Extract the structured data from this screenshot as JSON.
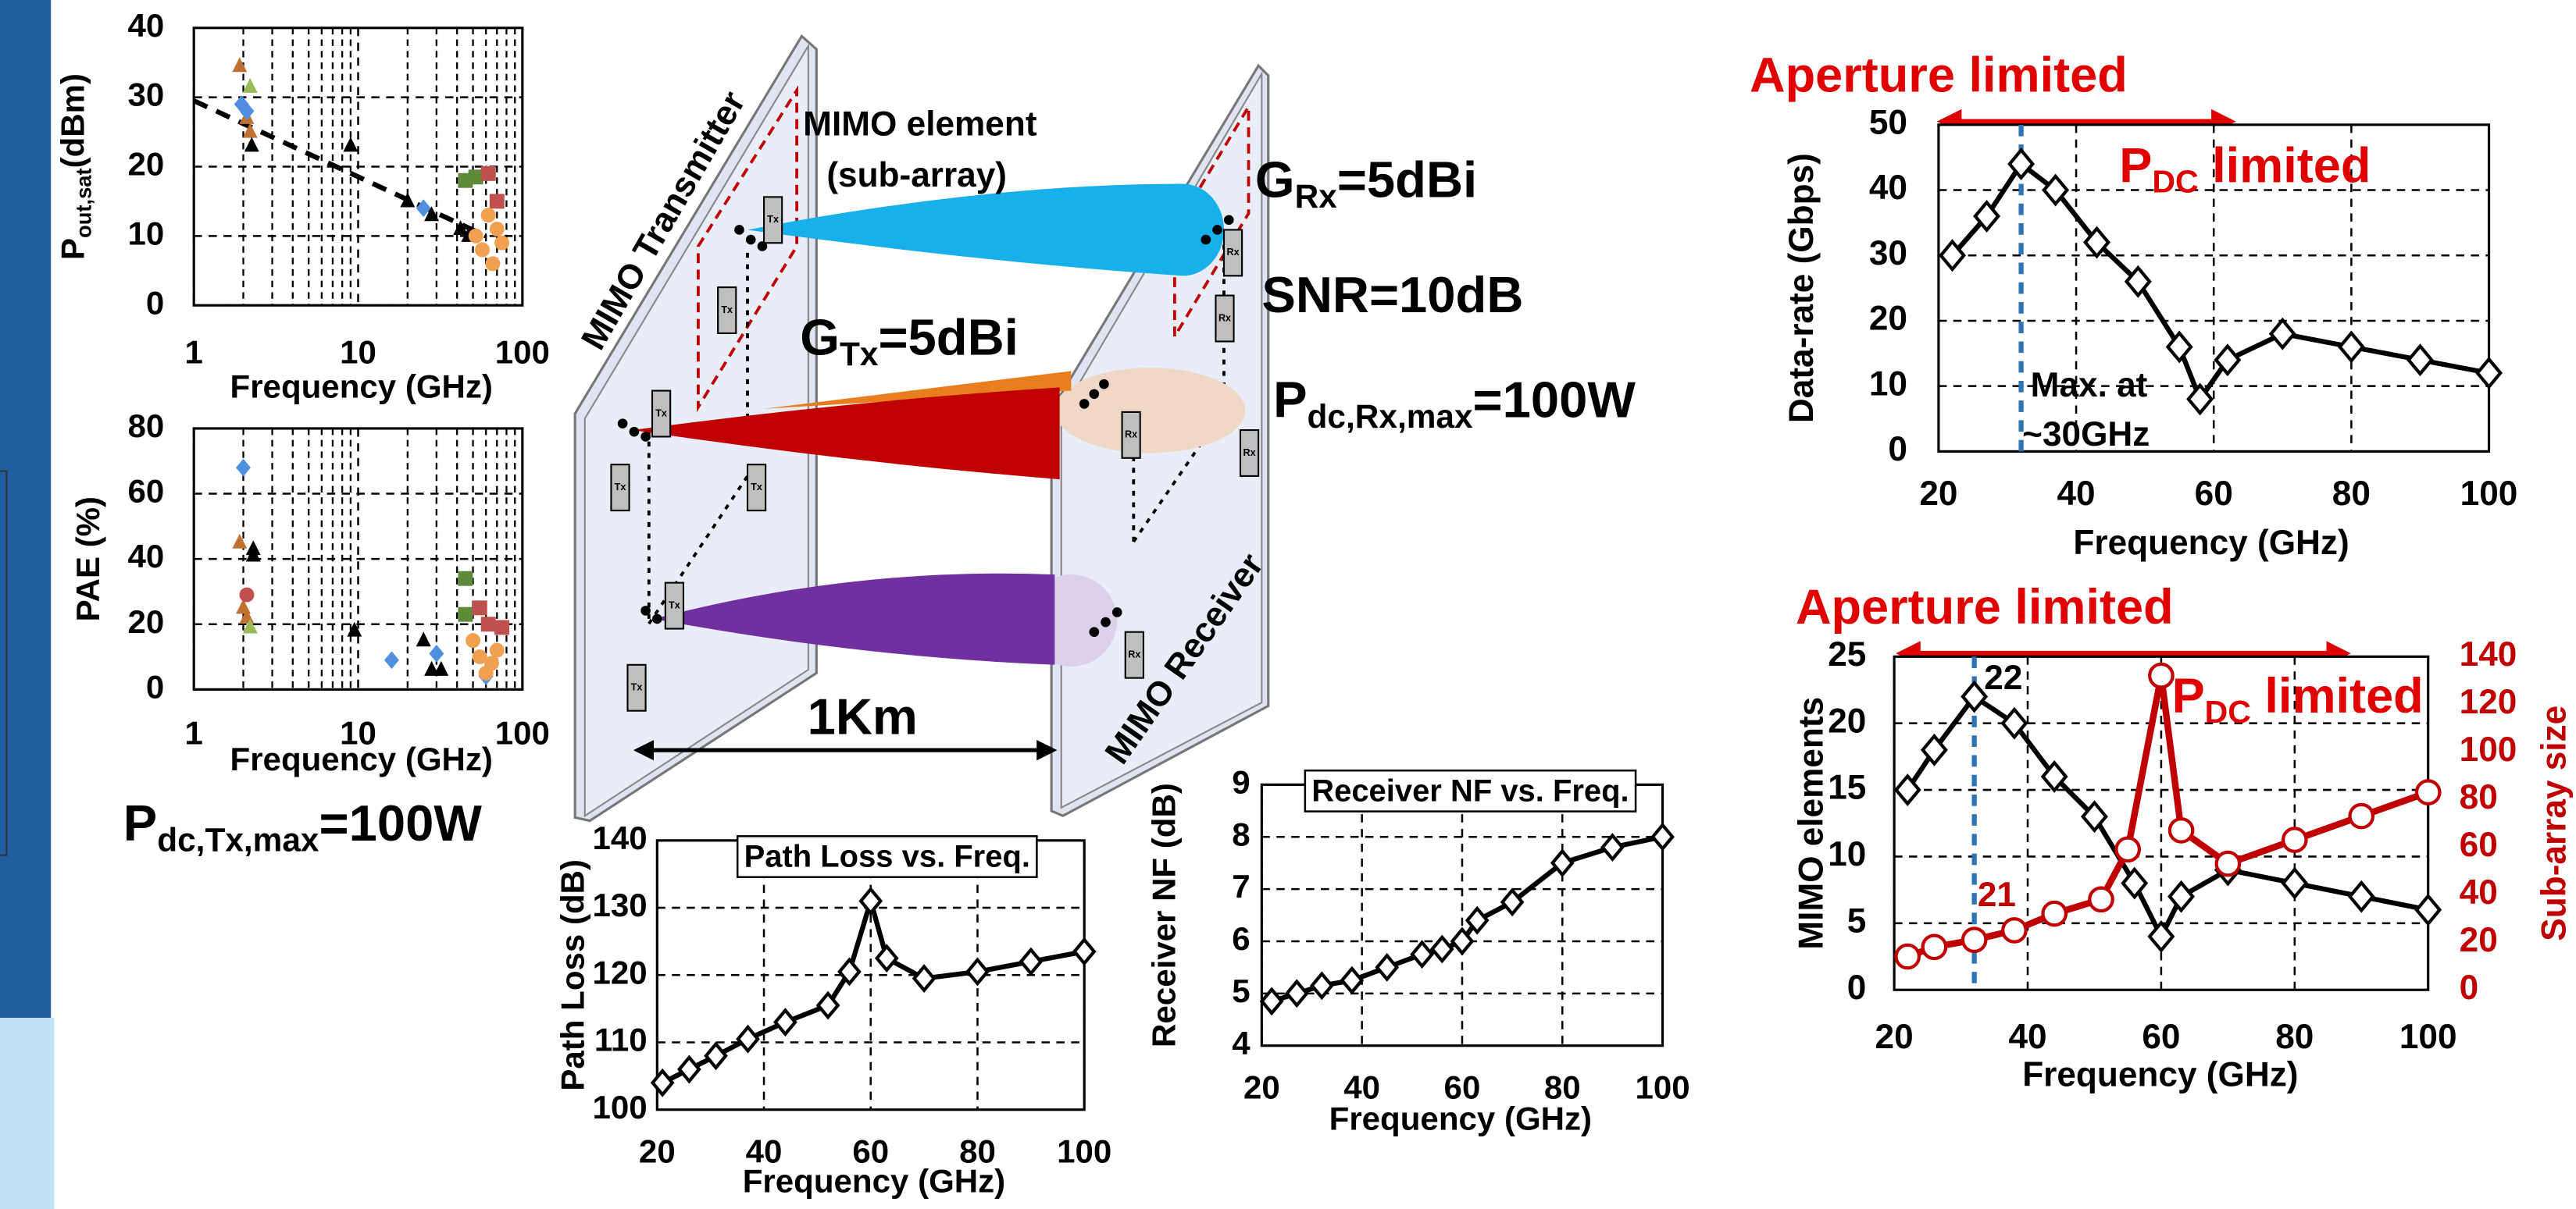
{
  "chart_data": [
    {
      "type": "scatter",
      "xscale": "log",
      "xlim": [
        1,
        100
      ],
      "xticks": [
        1,
        10,
        100
      ],
      "xminorticks": [
        2,
        3,
        4,
        5,
        6,
        7,
        8,
        9,
        20,
        30,
        40,
        50,
        60,
        70,
        80,
        90
      ],
      "ylim": [
        0,
        40
      ],
      "yticks": [
        0,
        10,
        20,
        30,
        40
      ],
      "grid": true,
      "x_label": "Frequency (GHz)",
      "y_label": [
        "P",
        "out,sat",
        "(dBm)"
      ],
      "trend": {
        "x": [
          1,
          60
        ],
        "y": [
          29.5,
          10
        ],
        "color": "#000000"
      },
      "series": [
        {
          "marker": "triangle",
          "color": "#c07030",
          "x": [
            1.9,
            2.1,
            2.2
          ],
          "values": [
            34.5,
            27,
            25
          ]
        },
        {
          "marker": "triangle",
          "color": "#9bbb59",
          "x": [
            2.2
          ],
          "values": [
            31.5
          ]
        },
        {
          "marker": "diamond",
          "color": "#4f8fe0",
          "x": [
            1.95,
            2.1,
            25
          ],
          "values": [
            29,
            28,
            14
          ]
        },
        {
          "marker": "triangle",
          "color": "#000000",
          "x": [
            2.25,
            9,
            20,
            28,
            42,
            47
          ],
          "values": [
            23,
            23,
            15,
            13,
            11,
            10
          ]
        },
        {
          "marker": "square",
          "color": "#5f8a3a",
          "x": [
            45,
            52
          ],
          "values": [
            18,
            18.5
          ]
        },
        {
          "marker": "square",
          "color": "#c0504d",
          "x": [
            62,
            70
          ],
          "values": [
            19,
            15
          ]
        },
        {
          "marker": "circle",
          "color": "#f0a050",
          "x": [
            52,
            57,
            62,
            66,
            70,
            75
          ],
          "values": [
            10,
            8,
            13,
            6,
            11,
            9
          ]
        }
      ]
    },
    {
      "type": "scatter",
      "xscale": "log",
      "xlim": [
        1,
        100
      ],
      "xticks": [
        1,
        10,
        100
      ],
      "xminorticks": [
        2,
        3,
        4,
        5,
        6,
        7,
        8,
        9,
        20,
        30,
        40,
        50,
        60,
        70,
        80,
        90
      ],
      "ylim": [
        0,
        80
      ],
      "yticks": [
        0,
        20,
        40,
        60,
        80
      ],
      "grid": true,
      "x_label": "Frequency (GHz)",
      "y_label": "PAE (%)",
      "series": [
        {
          "marker": "diamond",
          "color": "#4f8fe0",
          "x": [
            2,
            16,
            30,
            60
          ],
          "values": [
            68,
            9,
            11,
            4
          ]
        },
        {
          "marker": "triangle",
          "color": "#c07030",
          "x": [
            1.9,
            2,
            2.1
          ],
          "values": [
            45,
            25,
            22
          ]
        },
        {
          "marker": "triangle",
          "color": "#9bbb59",
          "x": [
            2.2
          ],
          "values": [
            19
          ]
        },
        {
          "marker": "circle",
          "color": "#c0504d",
          "x": [
            2.1
          ],
          "values": [
            29
          ]
        },
        {
          "marker": "triangle",
          "color": "#000000",
          "x": [
            2.3,
            2.3,
            9.5,
            25,
            28,
            32
          ],
          "values": [
            43,
            41,
            18,
            15,
            6,
            6
          ]
        },
        {
          "marker": "square",
          "color": "#5f8a3a",
          "x": [
            45,
            45
          ],
          "values": [
            34,
            23
          ]
        },
        {
          "marker": "square",
          "color": "#c0504d",
          "x": [
            55,
            62,
            75
          ],
          "values": [
            25,
            20,
            19
          ]
        },
        {
          "marker": "circle",
          "color": "#f0a050",
          "x": [
            50,
            55,
            60,
            65,
            70
          ],
          "values": [
            15,
            10,
            5,
            8,
            12
          ]
        }
      ]
    },
    {
      "type": "line",
      "title": "Path Loss vs. Freq.",
      "xlim": [
        20,
        100
      ],
      "xticks": [
        20,
        40,
        60,
        80,
        100
      ],
      "ylim": [
        100,
        140
      ],
      "yticks": [
        100,
        110,
        120,
        130,
        140
      ],
      "grid": true,
      "x_label": "Frequency (GHz)",
      "y_label": "Path Loss (dB)",
      "series": [
        {
          "marker": "diamond",
          "color": "#000000",
          "x": [
            21,
            26,
            31,
            37,
            44,
            52,
            56,
            60,
            63,
            70,
            80,
            90,
            100
          ],
          "values": [
            104,
            106,
            108,
            110.5,
            113,
            115.5,
            120.5,
            131,
            122.5,
            119.5,
            120.5,
            122,
            123.5
          ]
        }
      ]
    },
    {
      "type": "line",
      "title": "Receiver NF vs. Freq.",
      "xlim": [
        20,
        100
      ],
      "xticks": [
        20,
        40,
        60,
        80,
        100
      ],
      "ylim": [
        4,
        9
      ],
      "yticks": [
        4,
        5,
        6,
        7,
        8,
        9
      ],
      "grid": true,
      "x_label": "Frequency (GHz)",
      "y_label": "Receiver NF (dB)",
      "series": [
        {
          "marker": "diamond",
          "color": "#000000",
          "x": [
            22,
            27,
            32,
            38,
            45,
            52,
            56,
            60,
            63,
            70,
            80,
            90,
            100
          ],
          "values": [
            4.85,
            5,
            5.15,
            5.25,
            5.5,
            5.75,
            5.85,
            6,
            6.4,
            6.75,
            7.5,
            7.8,
            8
          ]
        }
      ]
    },
    {
      "type": "line",
      "xlim": [
        20,
        100
      ],
      "xticks": [
        20,
        40,
        60,
        80,
        100
      ],
      "ylim": [
        0,
        50
      ],
      "yticks": [
        0,
        10,
        20,
        30,
        40,
        50
      ],
      "grid": true,
      "x_label": "Frequency (GHz)",
      "y_label": "Data-rate (Gbps)",
      "vline": 32,
      "annotation_left": "Aperture limited",
      "annotation_right": [
        "P",
        "DC",
        " limited"
      ],
      "note": [
        "Max. at",
        "~30GHz"
      ],
      "series": [
        {
          "marker": "diamond",
          "color": "#000000",
          "x": [
            22,
            27,
            32,
            37,
            43,
            49,
            55,
            58,
            62,
            70,
            80,
            90,
            100
          ],
          "values": [
            30,
            36,
            44,
            40,
            32,
            26,
            16,
            8,
            14,
            18,
            16,
            14,
            12
          ]
        }
      ]
    },
    {
      "type": "line",
      "xlim": [
        20,
        100
      ],
      "xticks": [
        20,
        40,
        60,
        80,
        100
      ],
      "ylim": [
        0,
        25
      ],
      "yticks": [
        0,
        5,
        10,
        15,
        20,
        25
      ],
      "y2lim": [
        0,
        140
      ],
      "y2ticks": [
        0,
        20,
        40,
        60,
        80,
        100,
        120,
        140
      ],
      "grid": true,
      "x_label": "Frequency (GHz)",
      "y_label": "MIMO elements",
      "y2_label": "Sub-array size",
      "vline": 32,
      "annotation_left": "Aperture limited",
      "annotation_right": [
        "P",
        "DC",
        " limited"
      ],
      "series": [
        {
          "marker": "diamond",
          "color": "#000000",
          "x": [
            22,
            26,
            32,
            38,
            44,
            50,
            56,
            60,
            63,
            70,
            80,
            90,
            100
          ],
          "values": [
            15,
            18,
            22,
            20,
            16,
            13,
            8,
            4,
            7,
            9,
            8,
            7,
            6
          ],
          "value_labels": [
            null,
            null,
            "22",
            null,
            null,
            null,
            null,
            null,
            null,
            null,
            null,
            null,
            null
          ]
        },
        {
          "marker": "circle",
          "color": "#c00000",
          "axis": "y2",
          "x": [
            22,
            26,
            32,
            38,
            44,
            51,
            55,
            60,
            63,
            70,
            80,
            90,
            100
          ],
          "values": [
            14,
            18,
            21,
            25,
            32,
            38,
            59,
            132,
            67,
            53,
            63,
            73,
            83
          ],
          "value_labels": [
            null,
            null,
            "21",
            null,
            null,
            null,
            null,
            null,
            null,
            null,
            null,
            null,
            null
          ]
        }
      ]
    }
  ],
  "diagram": {
    "tx_label": "MIMO Transmitter",
    "rx_label": "MIMO Receiver",
    "element_label": [
      "MIMO element",
      "(sub-array)"
    ],
    "g_rx": [
      "G",
      "Rx",
      "=5dBi"
    ],
    "snr": "SNR=10dB",
    "g_tx": [
      "G",
      "Tx",
      "=5dBi"
    ],
    "p_rx": [
      "P",
      "dc,Rx,max",
      "=100W"
    ],
    "distance": "1Km",
    "p_tx": [
      "P",
      "dc,Tx,max",
      "=100W"
    ],
    "tx_tag": "Tx",
    "rx_tag": "Rx"
  }
}
